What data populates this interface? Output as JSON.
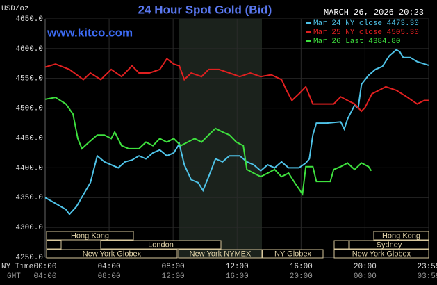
{
  "chart_data": {
    "type": "line",
    "title": "24 Hour Spot Gold (Bid)",
    "subtitle": "MARCH 26, 2026 20:23",
    "watermark": "www.kitco.com",
    "ylabel": "USD/oz",
    "xlabel": "NY Time",
    "x2label": "GMT",
    "xlim": [
      0,
      23.98
    ],
    "ylim": [
      4250,
      4650
    ],
    "yticks": [
      {
        "value": 4250,
        "label": "4250.0"
      },
      {
        "value": 4300,
        "label": "4300.0"
      },
      {
        "value": 4350,
        "label": "4350.0"
      },
      {
        "value": 4400,
        "label": "4400.0"
      },
      {
        "value": 4450,
        "label": "4450.0"
      },
      {
        "value": 4500,
        "label": "4500.0"
      },
      {
        "value": 4550,
        "label": "4550.0"
      },
      {
        "value": 4600,
        "label": "4600.0"
      },
      {
        "value": 4650,
        "label": "4650.0"
      }
    ],
    "xticks": [
      {
        "value": 0,
        "label": "00:00"
      },
      {
        "value": 4,
        "label": "04:00"
      },
      {
        "value": 8,
        "label": "08:00"
      },
      {
        "value": 12,
        "label": "12:00"
      },
      {
        "value": 16,
        "label": "16:00"
      },
      {
        "value": 20,
        "label": "20:00"
      },
      {
        "value": 23.98,
        "label": "23:59"
      }
    ],
    "x2ticks": [
      {
        "value": 0,
        "label": "04:00"
      },
      {
        "value": 4,
        "label": "08:00"
      },
      {
        "value": 8,
        "label": "12:00"
      },
      {
        "value": 12,
        "label": "16:00"
      },
      {
        "value": 16,
        "label": "20:00"
      },
      {
        "value": 20,
        "label": "00:00"
      },
      {
        "value": 23.98,
        "label": "03:59"
      }
    ],
    "grid": true,
    "sessions": [
      "Hong Kong",
      "London",
      "New York Globex",
      "New York NYMEX",
      "NY Globex",
      "Hong Kong",
      "Sydney",
      "New York Globex"
    ],
    "series": [
      {
        "name": "Mar 24 NY close 4473.30",
        "color": "#4fc3e8",
        "x": [
          0,
          0.65,
          1.3,
          1.52,
          1.96,
          2.39,
          2.83,
          3.26,
          3.7,
          4.13,
          4.57,
          5.0,
          5.43,
          5.87,
          6.3,
          6.74,
          7.17,
          7.61,
          8.04,
          8.39,
          8.7,
          9.13,
          9.57,
          9.87,
          10.22,
          10.65,
          11.09,
          11.52,
          12.17,
          12.61,
          13.04,
          13.48,
          13.91,
          14.35,
          14.78,
          15.22,
          15.87,
          16.3,
          16.52,
          16.74,
          16.96,
          17.61,
          18.48,
          18.7,
          18.91,
          19.35,
          19.57,
          19.78,
          20.22,
          20.65,
          21.09,
          21.52,
          21.96,
          22.17,
          22.39,
          22.83,
          23.26,
          23.98
        ],
        "values": [
          4350,
          4340,
          4330,
          4322,
          4335,
          4355,
          4375,
          4420,
          4410,
          4405,
          4400,
          4410,
          4413,
          4420,
          4415,
          4425,
          4430,
          4420,
          4425,
          4440,
          4405,
          4380,
          4375,
          4362,
          4385,
          4415,
          4410,
          4420,
          4420,
          4410,
          4405,
          4395,
          4405,
          4400,
          4410,
          4400,
          4400,
          4408,
          4415,
          4455,
          4475,
          4475,
          4477,
          4465,
          4482,
          4505,
          4500,
          4540,
          4555,
          4565,
          4570,
          4588,
          4598,
          4595,
          4585,
          4585,
          4578,
          4572
        ]
      },
      {
        "name": "Mar 25 NY close 4505.30",
        "color": "#e02020",
        "x": [
          0,
          0.65,
          1.52,
          2.39,
          2.83,
          3.48,
          4.13,
          4.78,
          5.43,
          5.87,
          6.52,
          7.17,
          7.61,
          8.04,
          8.39,
          8.7,
          9.13,
          9.78,
          10.22,
          10.87,
          11.52,
          12.17,
          12.83,
          13.48,
          14.13,
          14.78,
          15.09,
          15.43,
          15.87,
          16.3,
          16.74,
          17.17,
          18.04,
          18.48,
          18.91,
          19.35,
          19.78,
          20.0,
          20.43,
          20.87,
          21.3,
          21.96,
          22.61,
          23.26,
          23.7,
          23.98
        ],
        "values": [
          4569,
          4574,
          4565,
          4548,
          4559,
          4548,
          4565,
          4553,
          4571,
          4559,
          4559,
          4565,
          4583,
          4574,
          4571,
          4548,
          4559,
          4553,
          4565,
          4565,
          4559,
          4553,
          4559,
          4553,
          4556,
          4548,
          4530,
          4513,
          4524,
          4536,
          4507,
          4507,
          4507,
          4519,
          4513,
          4507,
          4495,
          4501,
          4524,
          4530,
          4536,
          4530,
          4519,
          4507,
          4513,
          4513
        ]
      },
      {
        "name": "Mar 26 Last 4384.80",
        "color": "#3ee03e",
        "x": [
          0,
          0.65,
          1.3,
          1.74,
          2.04,
          2.3,
          2.74,
          3.26,
          3.7,
          4.13,
          4.35,
          4.78,
          5.22,
          5.87,
          6.3,
          6.74,
          7.17,
          7.61,
          8.04,
          8.48,
          8.91,
          9.35,
          9.78,
          10.22,
          10.65,
          11.09,
          11.52,
          11.96,
          12.39,
          12.61,
          13.04,
          13.48,
          13.91,
          14.35,
          14.78,
          15.22,
          15.65,
          16.09,
          16.3,
          16.74,
          16.96,
          17.83,
          18.04,
          18.48,
          18.91,
          19.35,
          19.78,
          20.22,
          20.39
        ],
        "values": [
          4515,
          4518,
          4507,
          4490,
          4449,
          4432,
          4443,
          4455,
          4455,
          4449,
          4460,
          4437,
          4432,
          4432,
          4443,
          4437,
          4449,
          4443,
          4449,
          4437,
          4443,
          4449,
          4443,
          4455,
          4466,
          4460,
          4455,
          4443,
          4437,
          4397,
          4391,
          4385,
          4391,
          4397,
          4385,
          4391,
          4373,
          4356,
          4402,
          4402,
          4377,
          4377,
          4397,
          4402,
          4408,
          4397,
          4408,
          4402,
          4395
        ]
      }
    ]
  }
}
